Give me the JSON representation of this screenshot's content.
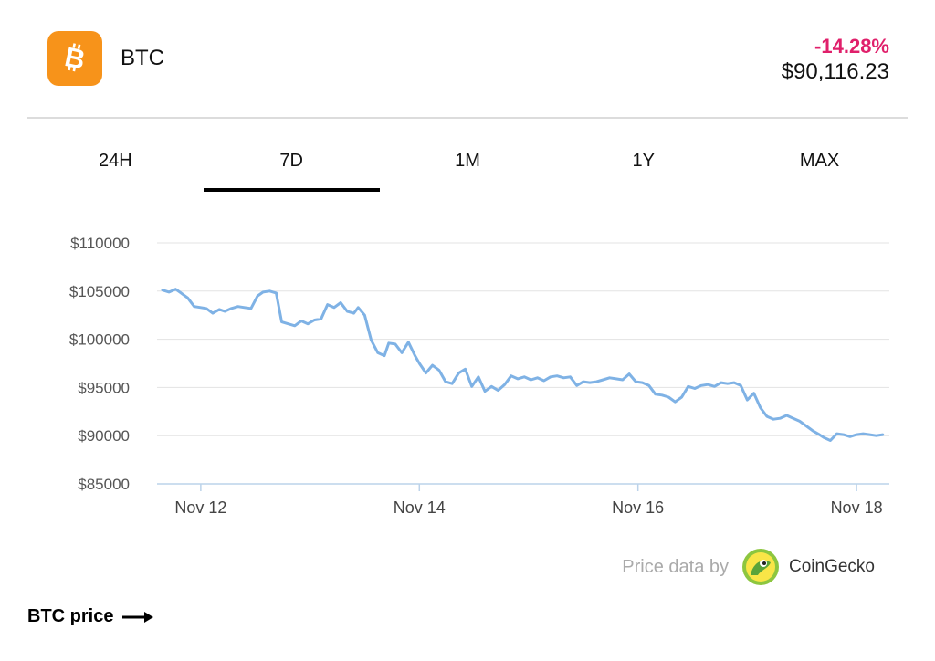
{
  "header": {
    "coin_name": "BTC",
    "change": "-14.28%",
    "price": "$90,116.23",
    "logo_icon": "bitcoin-icon",
    "logo_color": "#f7931a",
    "change_color": "#e0206b"
  },
  "tabs": [
    {
      "label": "24H",
      "active": false
    },
    {
      "label": "7D",
      "active": true
    },
    {
      "label": "1M",
      "active": false
    },
    {
      "label": "1Y",
      "active": false
    },
    {
      "label": "MAX",
      "active": false
    }
  ],
  "chart_data": {
    "type": "line",
    "title": "",
    "xlabel": "",
    "ylabel": "",
    "ylim": [
      85000,
      111000
    ],
    "yticks": [
      110000,
      105000,
      100000,
      95000,
      90000,
      85000
    ],
    "ytick_labels": [
      "$110000",
      "$105000",
      "$100000",
      "$95000",
      "$90000",
      "$85000"
    ],
    "xlim": [
      11.6,
      18.3
    ],
    "xticks": [
      12,
      14,
      16,
      18
    ],
    "xtick_labels": [
      "Nov 12",
      "Nov 14",
      "Nov 16",
      "Nov 18"
    ],
    "grid": true,
    "line_color": "#7fb2e5",
    "series": [
      {
        "x": [
          11.65,
          11.71,
          11.77,
          11.82,
          11.88,
          11.94,
          12.0,
          12.05,
          12.11,
          12.17,
          12.22,
          12.28,
          12.34,
          12.4,
          12.46,
          12.52,
          12.57,
          12.63,
          12.69,
          12.74,
          12.8,
          12.86,
          12.92,
          12.98,
          13.04,
          13.1,
          13.16,
          13.22,
          13.28,
          13.34,
          13.4,
          13.44,
          13.5,
          13.56,
          13.62,
          13.68,
          13.72,
          13.78,
          13.84,
          13.9,
          13.96,
          14.0,
          14.06,
          14.12,
          14.18,
          14.24,
          14.3,
          14.36,
          14.42,
          14.48,
          14.54,
          14.6,
          14.66,
          14.72,
          14.78,
          14.84,
          14.9,
          14.96,
          15.02,
          15.08,
          15.14,
          15.2,
          15.26,
          15.32,
          15.38,
          15.44,
          15.5,
          15.56,
          15.62,
          15.68,
          15.74,
          15.8,
          15.86,
          15.92,
          15.98,
          16.04,
          16.1,
          16.16,
          16.22,
          16.28,
          16.34,
          16.4,
          16.46,
          16.52,
          16.58,
          16.64,
          16.7,
          16.76,
          16.82,
          16.88,
          16.94,
          17.0,
          17.06,
          17.12,
          17.18,
          17.24,
          17.3,
          17.36,
          17.42,
          17.48,
          17.54,
          17.6,
          17.66,
          17.7,
          17.76,
          17.82,
          17.88,
          17.94,
          18.0,
          18.06,
          18.12,
          18.18,
          18.24
        ],
        "values": [
          105100,
          104900,
          105200,
          104800,
          104300,
          103400,
          103300,
          103200,
          102700,
          103100,
          102900,
          103200,
          103400,
          103300,
          103200,
          104500,
          104900,
          105000,
          104800,
          101800,
          101600,
          101400,
          101900,
          101600,
          102000,
          102100,
          103600,
          103300,
          103800,
          102900,
          102700,
          103300,
          102500,
          99900,
          98600,
          98300,
          99600,
          99500,
          98600,
          99700,
          98300,
          97500,
          96500,
          97300,
          96800,
          95600,
          95400,
          96500,
          96900,
          95100,
          96100,
          94600,
          95100,
          94700,
          95300,
          96200,
          95900,
          96100,
          95800,
          96000,
          95700,
          96100,
          96200,
          96000,
          96100,
          95200,
          95600,
          95500,
          95600,
          95800,
          96000,
          95900,
          95800,
          96400,
          95600,
          95500,
          95200,
          94300,
          94200,
          94000,
          93500,
          94000,
          95100,
          94900,
          95200,
          95300,
          95100,
          95500,
          95400,
          95500,
          95200,
          93700,
          94400,
          92900,
          92000,
          91700,
          91800,
          92100,
          91800,
          91500,
          91000,
          90500,
          90100,
          89800,
          89500,
          90200,
          90100,
          89900,
          90100,
          90200,
          90100,
          90000,
          90100
        ]
      }
    ]
  },
  "attribution": {
    "text": "Price data by",
    "brand": "CoinGecko",
    "brand_icon": "gecko-icon"
  },
  "footer": {
    "link_label": "BTC price",
    "arrow_icon": "arrow-right-icon"
  }
}
